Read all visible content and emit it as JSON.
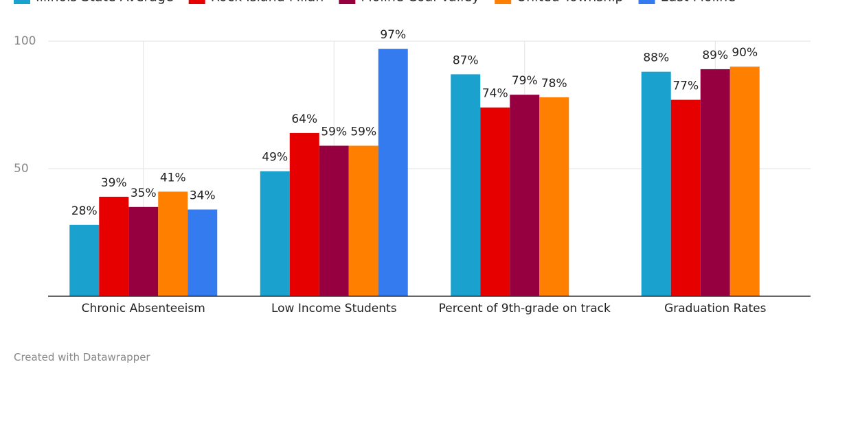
{
  "chart_data": {
    "type": "bar",
    "categories": [
      "Chronic Absenteeism",
      "Low Income Students",
      "Percent of 9th-grade on track",
      "Graduation Rates"
    ],
    "series": [
      {
        "name": "Illinois State Average",
        "color": "#1aa1ce",
        "values": [
          28,
          49,
          87,
          88
        ],
        "value_labels": [
          "28%",
          "49%",
          "87%",
          "88%"
        ]
      },
      {
        "name": "Rock Island Milan",
        "color": "#e60000",
        "values": [
          39,
          64,
          74,
          77
        ],
        "value_labels": [
          "39%",
          "64%",
          "74%",
          "77%"
        ]
      },
      {
        "name": "Moline Coal Valley",
        "color": "#960040",
        "values": [
          35,
          59,
          79,
          89
        ],
        "value_labels": [
          "35%",
          "59%",
          "79%",
          "89%"
        ]
      },
      {
        "name": "United Township",
        "color": "#ff7f00",
        "values": [
          41,
          59,
          78,
          90
        ],
        "value_labels": [
          "41%",
          "59%",
          "78%",
          "90%"
        ]
      },
      {
        "name": "East Moline",
        "color": "#337bef",
        "values": [
          34,
          97,
          null,
          null
        ],
        "value_labels": [
          "34%",
          "97%",
          null,
          null
        ]
      }
    ],
    "ylim": [
      0,
      100
    ],
    "yticks": [
      50,
      100
    ],
    "grid": true,
    "source": "Created with Datawrapper"
  }
}
